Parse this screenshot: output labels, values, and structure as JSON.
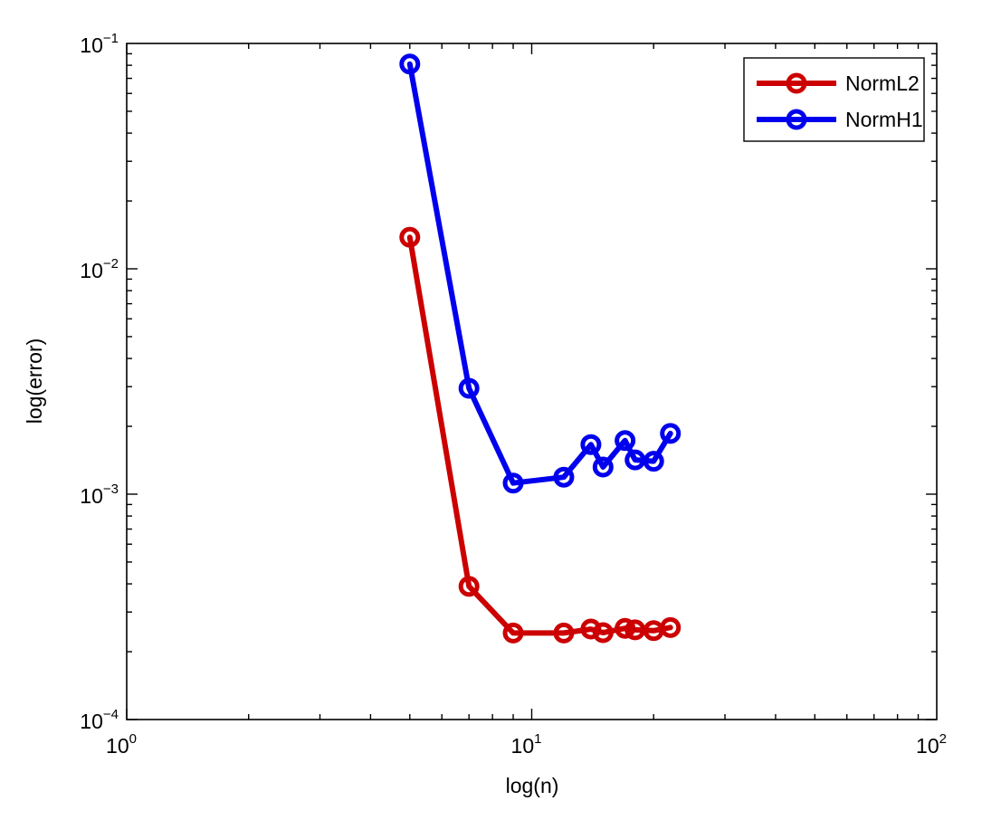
{
  "chart_data": {
    "type": "line",
    "xlabel": "log(n)",
    "ylabel": "log(error)",
    "x_scale": "log",
    "y_scale": "log",
    "xlim": [
      1,
      100
    ],
    "ylim": [
      0.0001,
      0.1
    ],
    "grid": false,
    "legend_position": "top-right",
    "x_ticks": [
      {
        "value": 1,
        "base": "10",
        "exp": "0"
      },
      {
        "value": 10,
        "base": "10",
        "exp": "1"
      },
      {
        "value": 100,
        "base": "10",
        "exp": "2"
      }
    ],
    "y_ticks": [
      {
        "value": 0.1,
        "base": "10",
        "exp": "−1"
      },
      {
        "value": 0.01,
        "base": "10",
        "exp": "−2"
      },
      {
        "value": 0.001,
        "base": "10",
        "exp": "−3"
      },
      {
        "value": 0.0001,
        "base": "10",
        "exp": "−4"
      }
    ],
    "series": [
      {
        "name": "NormL2",
        "color": "#cc0000",
        "marker": "circle",
        "x": [
          5,
          7,
          9,
          12,
          14,
          15,
          17,
          18,
          20,
          22
        ],
        "y": [
          0.0138,
          0.00039,
          0.000242,
          0.000242,
          0.000252,
          0.000243,
          0.000254,
          0.00025,
          0.000248,
          0.000256
        ]
      },
      {
        "name": "NormH1",
        "color": "#0000ee",
        "marker": "circle",
        "x": [
          5,
          7,
          9,
          12,
          14,
          15,
          17,
          18,
          20,
          22
        ],
        "y": [
          0.081,
          0.00295,
          0.00112,
          0.00119,
          0.00166,
          0.00132,
          0.00173,
          0.00142,
          0.0014,
          0.00186
        ]
      }
    ]
  }
}
